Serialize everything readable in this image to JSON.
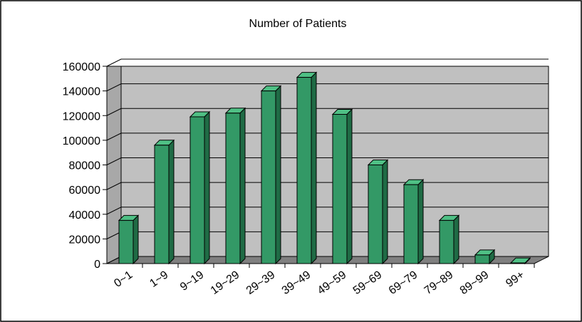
{
  "chart_data": {
    "type": "bar",
    "title": "Number of Patients",
    "xlabel": "",
    "ylabel": "",
    "categories": [
      "0~1",
      "1~9",
      "9~19",
      "19~29",
      "29~39",
      "39~49",
      "49~59",
      "59~69",
      "69~79",
      "79~89",
      "89~99",
      "99+"
    ],
    "values": [
      35000,
      96000,
      119000,
      122000,
      140000,
      151000,
      121000,
      80000,
      64000,
      35000,
      7000,
      500
    ],
    "ylim": [
      0,
      160000
    ],
    "yticks": [
      "0",
      "20000",
      "40000",
      "60000",
      "80000",
      "100000",
      "120000",
      "140000",
      "160000"
    ],
    "grid": true,
    "legend": "none",
    "style": "3d-column",
    "colors": {
      "bar_front": "#339966",
      "bar_side": "#1f6b45",
      "bar_top": "#4fc085",
      "wall": "#c0c0c0",
      "floor": "#808080",
      "frame": "#000000"
    }
  }
}
